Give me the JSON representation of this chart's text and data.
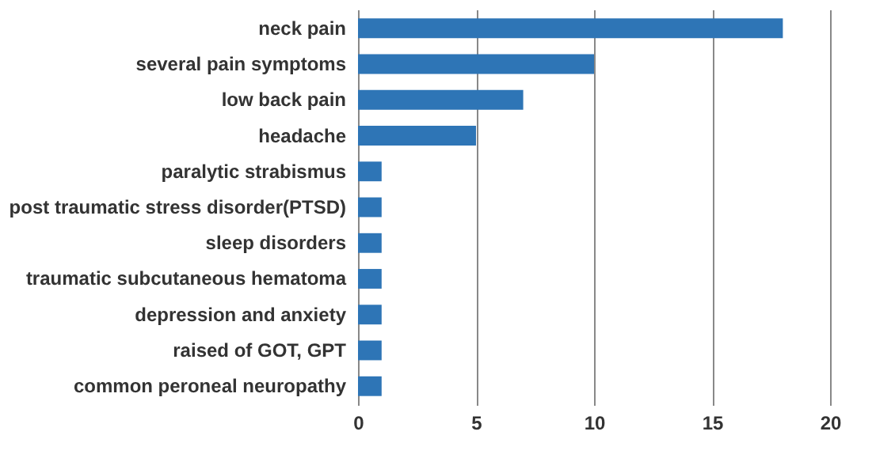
{
  "chart_data": {
    "type": "bar",
    "orientation": "horizontal",
    "categories": [
      "neck pain",
      "several pain symptoms",
      "low back pain",
      "headache",
      "paralytic strabismus",
      "post traumatic stress disorder(PTSD)",
      "sleep disorders",
      "traumatic subcutaneous hematoma",
      "depression and anxiety",
      "raised of GOT, GPT",
      "common peroneal neuropathy"
    ],
    "values": [
      18,
      10,
      7,
      5,
      1,
      1,
      1,
      1,
      1,
      1,
      1
    ],
    "color": "#2e75b6",
    "xlim": [
      0,
      20
    ],
    "xticks": [
      0,
      5,
      10,
      15,
      20
    ],
    "grid": "x"
  }
}
